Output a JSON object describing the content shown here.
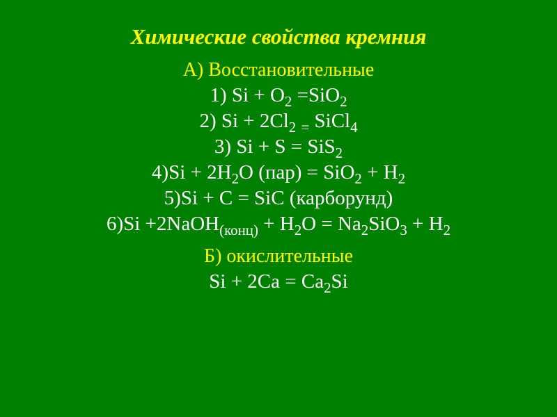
{
  "title": {
    "text": "Химические свойства кремния",
    "color": "#ffff00",
    "fontsize": 31
  },
  "sectionA": {
    "header": "А) Восстановительные",
    "header_color": "#ffff00",
    "header_fontsize": 28,
    "lines": [
      "1) Si + O₂ =SiO₂",
      "2) Si + 2Cl₂ ₌ SiCl₄",
      "3) Si + S = SiS₂",
      "4)Si + 2H₂O (пар) = SiO₂ + H₂",
      "5)Si + C = SiC (карборунд)",
      "6)Si +2NaOH₍конц₎ + H₂O = Na₂SiO₃ + H₂"
    ],
    "line_fontsize": 29,
    "line_color": "#ffffff"
  },
  "sectionB": {
    "header": "Б) окислительные",
    "header_color": "#ffff00",
    "header_fontsize": 28,
    "line": "Si + 2Ca = Ca₂Si",
    "line_fontsize": 29,
    "line_color": "#ffffff"
  },
  "background_color": "#008000"
}
